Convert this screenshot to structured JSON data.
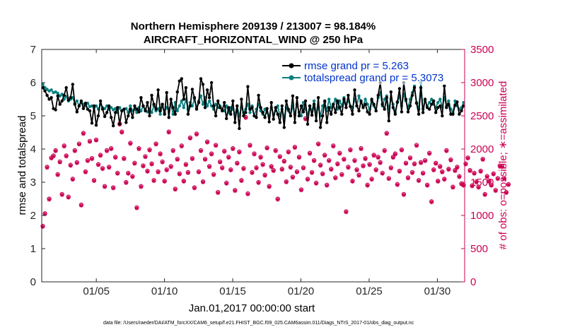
{
  "chart_data": {
    "type": "line",
    "title_line1": "Northern Hemisphere 209139 / 213007 = 98.184%",
    "title_line2": "AIRCRAFT_HORIZONTAL_WIND @ 250 hPa",
    "xlabel": "Jan.01,2017 00:00:00 start",
    "ylabel_left": "rmse and totalspread",
    "ylabel_right": "# of obs: o=possible; ∗=assimilated",
    "footer": "data file: /Users/raeder/DAI/ATM_forcXX/CAM6_setup/f.e21.FHIST_BGC.f09_025.CAM6assim.011/Diags_NTrS_2017-01/obs_diag_output.nc",
    "xlim": [
      1,
      32
    ],
    "x_ticks": [
      {
        "value": 5,
        "label": "01/05"
      },
      {
        "value": 10,
        "label": "01/10"
      },
      {
        "value": 15,
        "label": "01/15"
      },
      {
        "value": 20,
        "label": "01/20"
      },
      {
        "value": 25,
        "label": "01/25"
      },
      {
        "value": 30,
        "label": "01/30"
      }
    ],
    "ylim_left": [
      0,
      7
    ],
    "y_ticks_left": [
      0,
      1,
      2,
      3,
      4,
      5,
      6,
      7
    ],
    "ylim_right": [
      0,
      3500
    ],
    "y_ticks_right": [
      0,
      500,
      1000,
      1500,
      2000,
      2500,
      3000,
      3500
    ],
    "legend": [
      {
        "name": "rmse grand pr = 5.263",
        "color": "#000000"
      },
      {
        "name": "totalspread grand pr = 5.3073",
        "color": "#0a8080"
      }
    ],
    "colors": {
      "rmse": "#000000",
      "totalspread": "#0a8080",
      "obs": "#cc0052",
      "axis": "#262626"
    },
    "rmse": [
      5.85,
      5.75,
      5.62,
      5.5,
      5.55,
      5.22,
      5.18,
      5.6,
      5.35,
      5.45,
      5.62,
      5.85,
      5.48,
      5.55,
      5.95,
      5.35,
      5.12,
      5.3,
      5.45,
      5.22,
      5.38,
      5.2,
      5.15,
      4.78,
      5.3,
      4.72,
      5.0,
      5.45,
      5.2,
      4.98,
      5.1,
      5.3,
      4.95,
      4.7,
      5.1,
      5.25,
      4.75,
      5.15,
      5.2,
      4.8,
      5.0,
      5.2,
      4.95,
      5.3,
      5.2,
      5.12,
      5.55,
      5.3,
      5.15,
      5.4,
      5.0,
      5.62,
      5.35,
      5.2,
      5.78,
      5.15,
      5.35,
      5.05,
      5.7,
      4.95,
      5.5,
      5.25,
      5.05,
      5.72,
      6.05,
      6.12,
      5.5,
      5.85,
      5.05,
      5.3,
      5.8,
      5.55,
      5.2,
      5.4,
      6.12,
      5.95,
      5.25,
      5.78,
      5.55,
      6.0,
      5.3,
      5.0,
      5.45,
      5.25,
      5.15,
      5.4,
      4.92,
      5.25,
      5.05,
      5.45,
      4.8,
      5.3,
      4.62,
      5.5,
      5.0,
      5.1,
      5.88,
      5.2,
      5.25,
      5.0,
      4.95,
      5.62,
      5.25,
      5.1,
      4.95,
      5.22,
      4.82,
      5.4,
      4.9,
      5.25,
      5.05,
      4.8,
      5.3,
      4.65,
      5.45,
      5.2,
      5.0,
      5.6,
      4.8,
      5.55,
      5.0,
      5.3,
      5.12,
      5.45,
      4.75,
      5.3,
      5.02,
      5.35,
      4.85,
      5.55,
      4.65,
      5.0,
      5.45,
      4.8,
      5.25,
      5.05,
      5.35,
      5.1,
      5.45,
      5.25,
      5.05,
      5.5,
      5.25,
      5.62,
      5.28,
      5.05,
      5.78,
      5.3,
      5.15,
      5.45,
      5.25,
      5.35,
      5.12,
      5.05,
      5.5,
      5.35,
      5.15,
      5.62,
      6.0,
      5.35,
      5.2,
      5.55,
      4.85,
      5.72,
      5.25,
      5.05,
      5.42,
      5.82,
      5.12,
      6.0,
      5.5,
      5.12,
      5.3,
      5.62,
      5.85,
      5.38,
      5.05,
      5.85,
      5.1,
      5.5,
      5.25,
      5.2,
      5.35,
      5.45,
      5.1,
      5.25,
      5.3,
      5.0,
      5.9,
      5.25,
      5.35,
      5.05,
      5.05,
      5.32,
      5.42,
      5.05,
      5.15,
      5.3
    ],
    "totalspread": [
      5.95,
      5.85,
      5.8,
      5.75,
      5.78,
      5.7,
      5.72,
      5.68,
      5.6,
      5.65,
      5.5,
      5.58,
      5.45,
      5.5,
      5.55,
      5.38,
      5.45,
      5.3,
      5.4,
      5.35,
      5.3,
      5.38,
      5.28,
      5.3,
      5.25,
      5.3,
      5.2,
      5.35,
      5.25,
      5.22,
      5.3,
      5.2,
      5.25,
      5.18,
      5.22,
      5.1,
      5.25,
      5.15,
      5.2,
      5.22,
      5.1,
      5.3,
      5.15,
      5.2,
      5.1,
      5.25,
      5.15,
      5.3,
      5.18,
      5.12,
      5.22,
      5.1,
      5.3,
      5.15,
      5.22,
      5.05,
      5.3,
      5.1,
      5.25,
      5.2,
      5.35,
      5.05,
      5.4,
      5.15,
      5.3,
      5.45,
      5.25,
      5.5,
      5.2,
      5.4,
      5.3,
      5.5,
      5.25,
      5.45,
      5.6,
      5.35,
      5.55,
      5.3,
      5.45,
      5.3,
      5.2,
      5.35,
      5.25,
      5.3,
      5.2,
      5.15,
      5.3,
      5.1,
      5.25,
      5.2,
      5.05,
      5.3,
      5.0,
      5.25,
      5.1,
      5.2,
      5.35,
      5.1,
      5.3,
      5.0,
      5.2,
      5.35,
      5.15,
      5.05,
      5.2,
      5.1,
      5.0,
      5.25,
      5.05,
      5.15,
      5.3,
      5.0,
      5.2,
      4.95,
      5.25,
      5.15,
      5.0,
      5.3,
      5.05,
      5.35,
      5.1,
      5.0,
      5.4,
      5.2,
      5.05,
      5.3,
      5.15,
      5.45,
      5.1,
      5.25,
      5.0,
      5.3,
      5.4,
      5.15,
      5.5,
      5.25,
      5.35,
      5.5,
      5.2,
      5.45,
      5.3,
      5.55,
      5.35,
      5.45,
      5.3,
      5.25,
      5.5,
      5.3,
      5.6,
      5.4,
      5.3,
      5.5,
      5.35,
      5.2,
      5.45,
      5.3,
      5.15,
      5.55,
      5.7,
      5.3,
      5.5,
      5.6,
      5.2,
      5.5,
      5.35,
      5.1,
      5.4,
      5.6,
      5.3,
      5.65,
      5.45,
      5.25,
      5.5,
      5.7,
      5.9,
      5.4,
      5.2,
      6.0,
      5.2,
      5.45,
      5.3,
      5.4,
      5.5,
      5.35,
      5.25,
      5.4,
      5.5,
      5.25,
      5.55,
      5.3,
      5.45,
      5.2,
      5.1,
      5.45,
      5.3,
      5.2,
      5.25,
      5.4
    ],
    "obs_possible": [
      840,
      1030,
      1730,
      1250,
      1870,
      1900,
      1980,
      1620,
      1810,
      1320,
      2050,
      1900,
      1280,
      1760,
      1550,
      1980,
      1800,
      2080,
      1160,
      2240,
      1660,
      1830,
      2120,
      1860,
      1530,
      2140,
      1770,
      1910,
      1710,
      1440,
      1980,
      1730,
      2010,
      1420,
      1880,
      1640,
      2380,
      2260,
      1860,
      1500,
      1640,
      2090,
      1590,
      1790,
      1120,
      2010,
      1440,
      1750,
      1890,
      1670,
      1990,
      1780,
      1530,
      2080,
      1660,
      1930,
      1810,
      1520,
      1690,
      2260,
      1740,
      1980,
      1400,
      1850,
      1630,
      2050,
      1520,
      1770,
      1650,
      2170,
      1860,
      1420,
      2230,
      1660,
      1980,
      1510,
      1850,
      2110,
      1740,
      1930,
      1620,
      2060,
      1350,
      1810,
      1720,
      1970,
      1490,
      1880,
      1690,
      2010,
      1380,
      1790,
      1960,
      1530,
      1710,
      2480,
      1330,
      2060,
      1650,
      1930,
      1720,
      1500,
      1880,
      1770,
      1610,
      2020,
      1440,
      1740,
      1680,
      1980,
      1250,
      1890,
      1700,
      1820,
      1510,
      1960,
      1730,
      1580,
      2030,
      1660,
      1880,
      1390,
      1720,
      2460,
      1550,
      1940,
      1650,
      1830,
      1490,
      2080,
      1760,
      1630,
      1910,
      1460,
      1830,
      1700,
      2050,
      1570,
      1780,
      1940,
      1620,
      1850,
      1060,
      1730,
      1990,
      1520,
      1830,
      1690,
      1610,
      2010,
      1750,
      1860,
      1460,
      1770,
      1550,
      1910,
      1690,
      1880,
      1800,
      1640,
      1980,
      2240,
      1560,
      1720,
      1880,
      1930,
      1470,
      1670,
      1990,
      1320,
      1790,
      1570,
      1870,
      1650,
      1780,
      2060,
      1530,
      1800,
      1640,
      1830,
      1460,
      1940,
      1210,
      1690,
      1790,
      1520,
      1740,
      1660,
      1550,
      1980,
      1700,
      1840,
      1430,
      1680,
      1730,
      1590,
      1480,
      1460,
      1780,
      1870,
      1680,
      1450,
      1640,
      1510,
      1430,
      1670,
      1850,
      1320,
      1590,
      1520,
      1460,
      1630,
      1380,
      1560,
      1750,
      1740,
      1560,
      1350,
      1470
    ],
    "obs_assimilated": [
      830,
      1020,
      1720,
      1240,
      1860,
      1890,
      1970,
      1610,
      1800,
      1310,
      2040,
      1890,
      1270,
      1750,
      1540,
      1970,
      1790,
      2070,
      1150,
      2230,
      1650,
      1820,
      2110,
      1850,
      1520,
      2130,
      1760,
      1900,
      1700,
      1430,
      1970,
      1720,
      2000,
      1410,
      1870,
      1630,
      2370,
      2250,
      1850,
      1490,
      1630,
      2080,
      1580,
      1780,
      1110,
      2000,
      1430,
      1740,
      1880,
      1660,
      1980,
      1770,
      1520,
      2070,
      1650,
      1920,
      1800,
      1510,
      1680,
      2250,
      1730,
      1970,
      1390,
      1840,
      1620,
      2040,
      1510,
      1760,
      1640,
      2160,
      1850,
      1410,
      2220,
      1650,
      1970,
      1500,
      1840,
      2100,
      1730,
      1920,
      1610,
      2050,
      1340,
      1800,
      1710,
      1960,
      1480,
      1870,
      1680,
      2000,
      1370,
      1780,
      1950,
      1520,
      1700,
      2470,
      1320,
      2050,
      1640,
      1920,
      1710,
      1490,
      1870,
      1760,
      1600,
      2010,
      1430,
      1730,
      1670,
      1970,
      1240,
      1880,
      1690,
      1810,
      1500,
      1950,
      1720,
      1570,
      2020,
      1650,
      1870,
      1380,
      1710,
      2450,
      1540,
      1930,
      1640,
      1820,
      1480,
      2070,
      1750,
      1620,
      1900,
      1450,
      1820,
      1690,
      2040,
      1560,
      1770,
      1930,
      1610,
      1840,
      1050,
      1720,
      1980,
      1510,
      1820,
      1680,
      1600,
      2000,
      1740,
      1850,
      1450,
      1760,
      1540,
      1900,
      1680,
      1870,
      1790,
      1630,
      1970,
      2230,
      1550,
      1710,
      1870,
      1920,
      1460,
      1660,
      1980,
      1310,
      1780,
      1560,
      1860,
      1640,
      1770,
      2050,
      1520,
      1790,
      1630,
      1820,
      1450,
      1930,
      1200,
      1680,
      1780,
      1510,
      1730,
      1650,
      1540,
      1970,
      1690,
      1830,
      1420,
      1670,
      1720,
      1580,
      1470,
      1450,
      1770,
      1860,
      1670,
      1440,
      1630,
      1500,
      1420,
      1660,
      1840,
      1310,
      1580,
      1510,
      1450,
      1620,
      1370,
      1550,
      1740,
      1730,
      1550,
      1340,
      1460
    ]
  }
}
